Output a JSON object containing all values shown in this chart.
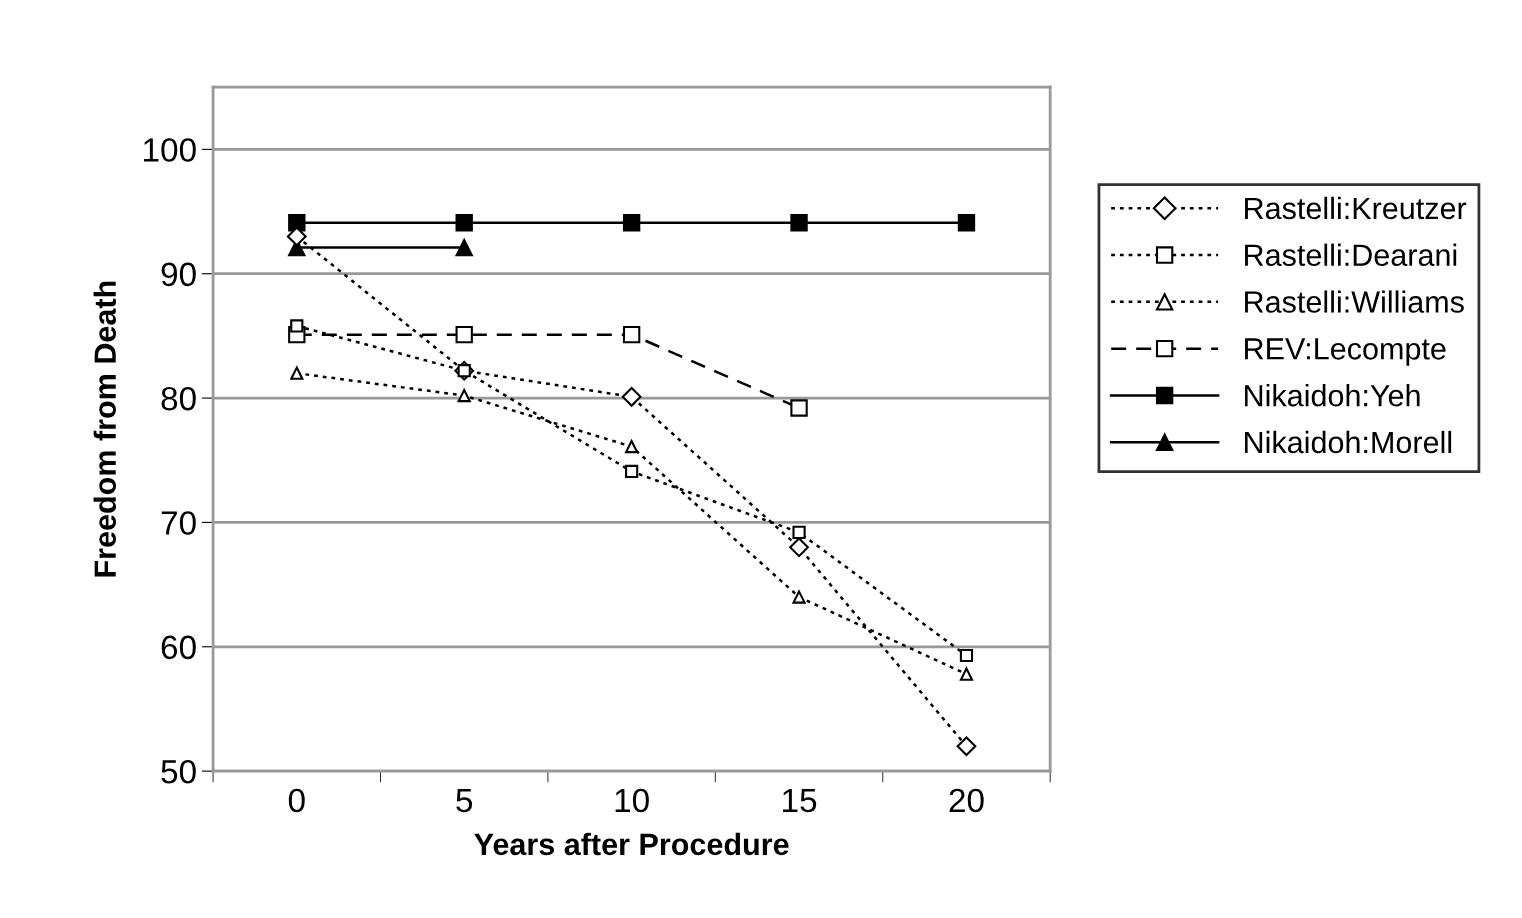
{
  "chart_data": {
    "type": "line",
    "xlabel": "Years after Procedure",
    "ylabel": "Freedom from Death",
    "categories": [
      "0",
      "5",
      "10",
      "15",
      "20"
    ],
    "ylim": [
      50,
      105
    ],
    "yticks": [
      50,
      60,
      70,
      80,
      90,
      100
    ],
    "grid": "y",
    "legend": "right",
    "series": [
      {
        "name": "Rastelli:Kreutzer",
        "color": "#000000",
        "line_style": "dotted",
        "marker": "diamond",
        "values": [
          93,
          82.2,
          80.1,
          68,
          52
        ]
      },
      {
        "name": "Rastelli:Dearani",
        "color": "#000000",
        "line_style": "dotted",
        "marker": "square",
        "values": [
          85.8,
          82.2,
          74.1,
          69.2,
          59.3
        ]
      },
      {
        "name": "Rastelli:Williams",
        "color": "#000000",
        "line_style": "dotted",
        "marker": "triangle",
        "values": [
          82,
          80.2,
          76.1,
          64,
          57.8
        ]
      },
      {
        "name": "REV:Lecompte",
        "color": "#000000",
        "line_style": "dashed",
        "marker": "square",
        "values": [
          85.1,
          85.1,
          85.1,
          79.2,
          null
        ]
      },
      {
        "name": "Nikaidoh:Yeh",
        "color": "#000000",
        "line_style": "solid",
        "marker": "square",
        "values": [
          94.1,
          94.1,
          94.1,
          94.1,
          94.1
        ]
      },
      {
        "name": "Nikaidoh:Morell",
        "color": "#000000",
        "line_style": "solid",
        "marker": "triangle",
        "values": [
          92.1,
          92.1,
          null,
          null,
          null
        ]
      }
    ]
  }
}
